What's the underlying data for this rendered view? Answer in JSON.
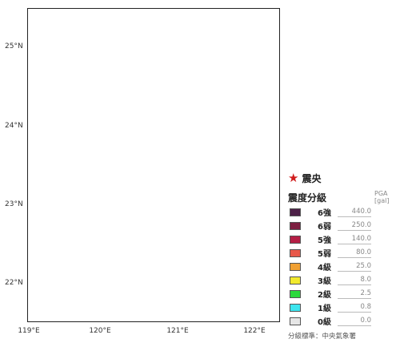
{
  "map": {
    "lat_labels": [
      "25°N",
      "24°N",
      "23°N",
      "22°N"
    ],
    "lon_labels": [
      "119°E",
      "120°E",
      "121°E",
      "122°E"
    ]
  },
  "legend": {
    "epicenter_label": "震央",
    "title": "震度分級",
    "pga_header": "PGA [gal]",
    "levels": [
      {
        "label": "6強",
        "pga": "440.0",
        "color": "#4d2148"
      },
      {
        "label": "6弱",
        "pga": "250.0",
        "color": "#7d1f40"
      },
      {
        "label": "5強",
        "pga": "140.0",
        "color": "#b51f45"
      },
      {
        "label": "5弱",
        "pga": "80.0",
        "color": "#e8584a"
      },
      {
        "label": "4級",
        "pga": "25.0",
        "color": "#f0a033"
      },
      {
        "label": "3級",
        "pga": "8.0",
        "color": "#f2ea2e"
      },
      {
        "label": "2級",
        "pga": "2.5",
        "color": "#2bd93b"
      },
      {
        "label": "1級",
        "pga": "0.8",
        "color": "#3ce5ee"
      },
      {
        "label": "0級",
        "pga": "0.0",
        "color": "#e6e6e6"
      }
    ],
    "source": "分級標準：中央氣象署"
  },
  "colors": {
    "epicenter_star": "#d01d1d"
  }
}
